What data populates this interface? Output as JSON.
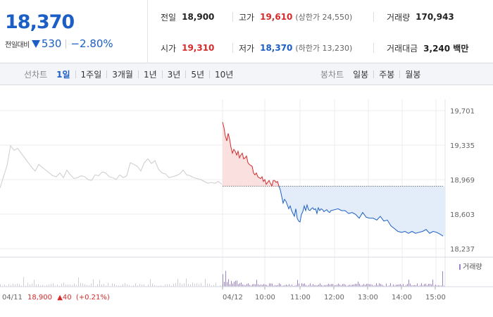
{
  "quote": {
    "current_price": "18,370",
    "change_label": "전일대비",
    "change_amount": "530",
    "change_rate": "−2.80%",
    "colors": {
      "down": "#1a5ec6",
      "up": "#d52a2a"
    }
  },
  "stats": {
    "prev_close_label": "전일",
    "prev_close": "18,900",
    "open_label": "시가",
    "open": "19,310",
    "high_label": "고가",
    "high": "19,610",
    "upper_limit": "(상한가 24,550)",
    "low_label": "저가",
    "low": "18,370",
    "lower_limit": "(하한가 13,230)",
    "volume_label": "거래량",
    "volume": "170,943",
    "trade_value_label": "거래대금",
    "trade_value": "3,240 백만"
  },
  "chart_tabs": {
    "title": "선차트",
    "items": [
      "1일",
      "1주일",
      "3개월",
      "1년",
      "3년",
      "5년",
      "10년"
    ],
    "active": "1일"
  },
  "candle_tabs": {
    "title": "봉차트",
    "items": [
      "일봉",
      "주봉",
      "월봉"
    ]
  },
  "prev_day_note": {
    "date": "04/11",
    "price": "18,900",
    "change": "▲40",
    "rate": "(+0.21%)"
  },
  "chart_data": {
    "type": "line",
    "y_ticks": [
      "19,701",
      "19,335",
      "18,969",
      "18,603",
      "18,237"
    ],
    "ylim": [
      18237,
      19701
    ],
    "reference_line": 18900,
    "x_tick_labels": [
      "04/11",
      "04/12",
      "10:00",
      "11:00",
      "12:00",
      "13:00",
      "14:00",
      "15:00"
    ],
    "volume_legend": "거래량",
    "series": [
      {
        "segment": "prev-day",
        "color": "#cccccc",
        "x": [
          0,
          5,
          10,
          15,
          20,
          25,
          30,
          35,
          40,
          45,
          50,
          55,
          60,
          65,
          70,
          75,
          80,
          85,
          90,
          95,
          100,
          105,
          110,
          115,
          120,
          125,
          130,
          135,
          140,
          145,
          150,
          155,
          160,
          165,
          170,
          175,
          180,
          185,
          190,
          195,
          200,
          205,
          210,
          215,
          220,
          225,
          230,
          235,
          240,
          245,
          250,
          255,
          260,
          265,
          270,
          275,
          280,
          285,
          290,
          295,
          300,
          305,
          310,
          315
        ],
        "values": [
          18880,
          19000,
          19120,
          19330,
          19280,
          19300,
          19250,
          19200,
          19150,
          19100,
          19060,
          19130,
          19100,
          19070,
          19040,
          19010,
          19000,
          19040,
          18990,
          19070,
          19020,
          18980,
          18990,
          19010,
          19000,
          18970,
          18960,
          19020,
          19010,
          19050,
          19040,
          19000,
          18990,
          18970,
          19020,
          18990,
          19010,
          19150,
          19130,
          19110,
          19060,
          19150,
          19190,
          19140,
          19170,
          19080,
          19040,
          19030,
          18990,
          19000,
          19010,
          19030,
          19070,
          19020,
          19010,
          18990,
          18980,
          18970,
          18950,
          18930,
          18940,
          18930,
          18950,
          18920
        ]
      },
      {
        "segment": "today-above",
        "color": "#d52a2a",
        "x": [
          316,
          318,
          320,
          322,
          324,
          326,
          328,
          330,
          332,
          334,
          336,
          338,
          340,
          342,
          344,
          346,
          348,
          350,
          352,
          354,
          356,
          358,
          360,
          362,
          364,
          366,
          368,
          370,
          372,
          374,
          376,
          378,
          380,
          382,
          384,
          386,
          388,
          390,
          392,
          394,
          396
        ],
        "values": [
          19580,
          19520,
          19430,
          19380,
          19460,
          19400,
          19310,
          19250,
          19290,
          19270,
          19230,
          19270,
          19200,
          19230,
          19250,
          19190,
          19200,
          19220,
          19150,
          19130,
          19120,
          19110,
          19040,
          19020,
          19040,
          19000,
          18990,
          18980,
          19000,
          18950,
          18970,
          18920,
          18940,
          18960,
          18930,
          18900,
          18960,
          18960,
          18940,
          18950,
          18900
        ]
      },
      {
        "segment": "today-below",
        "color": "#1a5ec6",
        "x": [
          396,
          398,
          400,
          402,
          404,
          406,
          408,
          410,
          412,
          414,
          416,
          418,
          420,
          422,
          424,
          426,
          428,
          430,
          432,
          434,
          436,
          438,
          440,
          442,
          444,
          446,
          448,
          450,
          452,
          454,
          456,
          458,
          460,
          462,
          464,
          466,
          468,
          470,
          475,
          480,
          485,
          490,
          495,
          500,
          505,
          510,
          515,
          520,
          525,
          530,
          535,
          540,
          545,
          550,
          555,
          560,
          565,
          570,
          575,
          580,
          585,
          590,
          595,
          600,
          605,
          610,
          615,
          620,
          625,
          629
        ],
        "values": [
          18900,
          18860,
          18790,
          18720,
          18760,
          18740,
          18700,
          18660,
          18690,
          18640,
          18610,
          18580,
          18660,
          18560,
          18530,
          18520,
          18600,
          18630,
          18690,
          18640,
          18700,
          18650,
          18640,
          18660,
          18670,
          18650,
          18660,
          18610,
          18670,
          18640,
          18660,
          18650,
          18630,
          18640,
          18650,
          18630,
          18620,
          18640,
          18650,
          18660,
          18640,
          18640,
          18610,
          18620,
          18600,
          18560,
          18620,
          18570,
          18560,
          18560,
          18540,
          18580,
          18530,
          18540,
          18480,
          18450,
          18420,
          18410,
          18420,
          18400,
          18420,
          18400,
          18410,
          18420,
          18440,
          18400,
          18420,
          18410,
          18390,
          18370
        ]
      }
    ]
  }
}
